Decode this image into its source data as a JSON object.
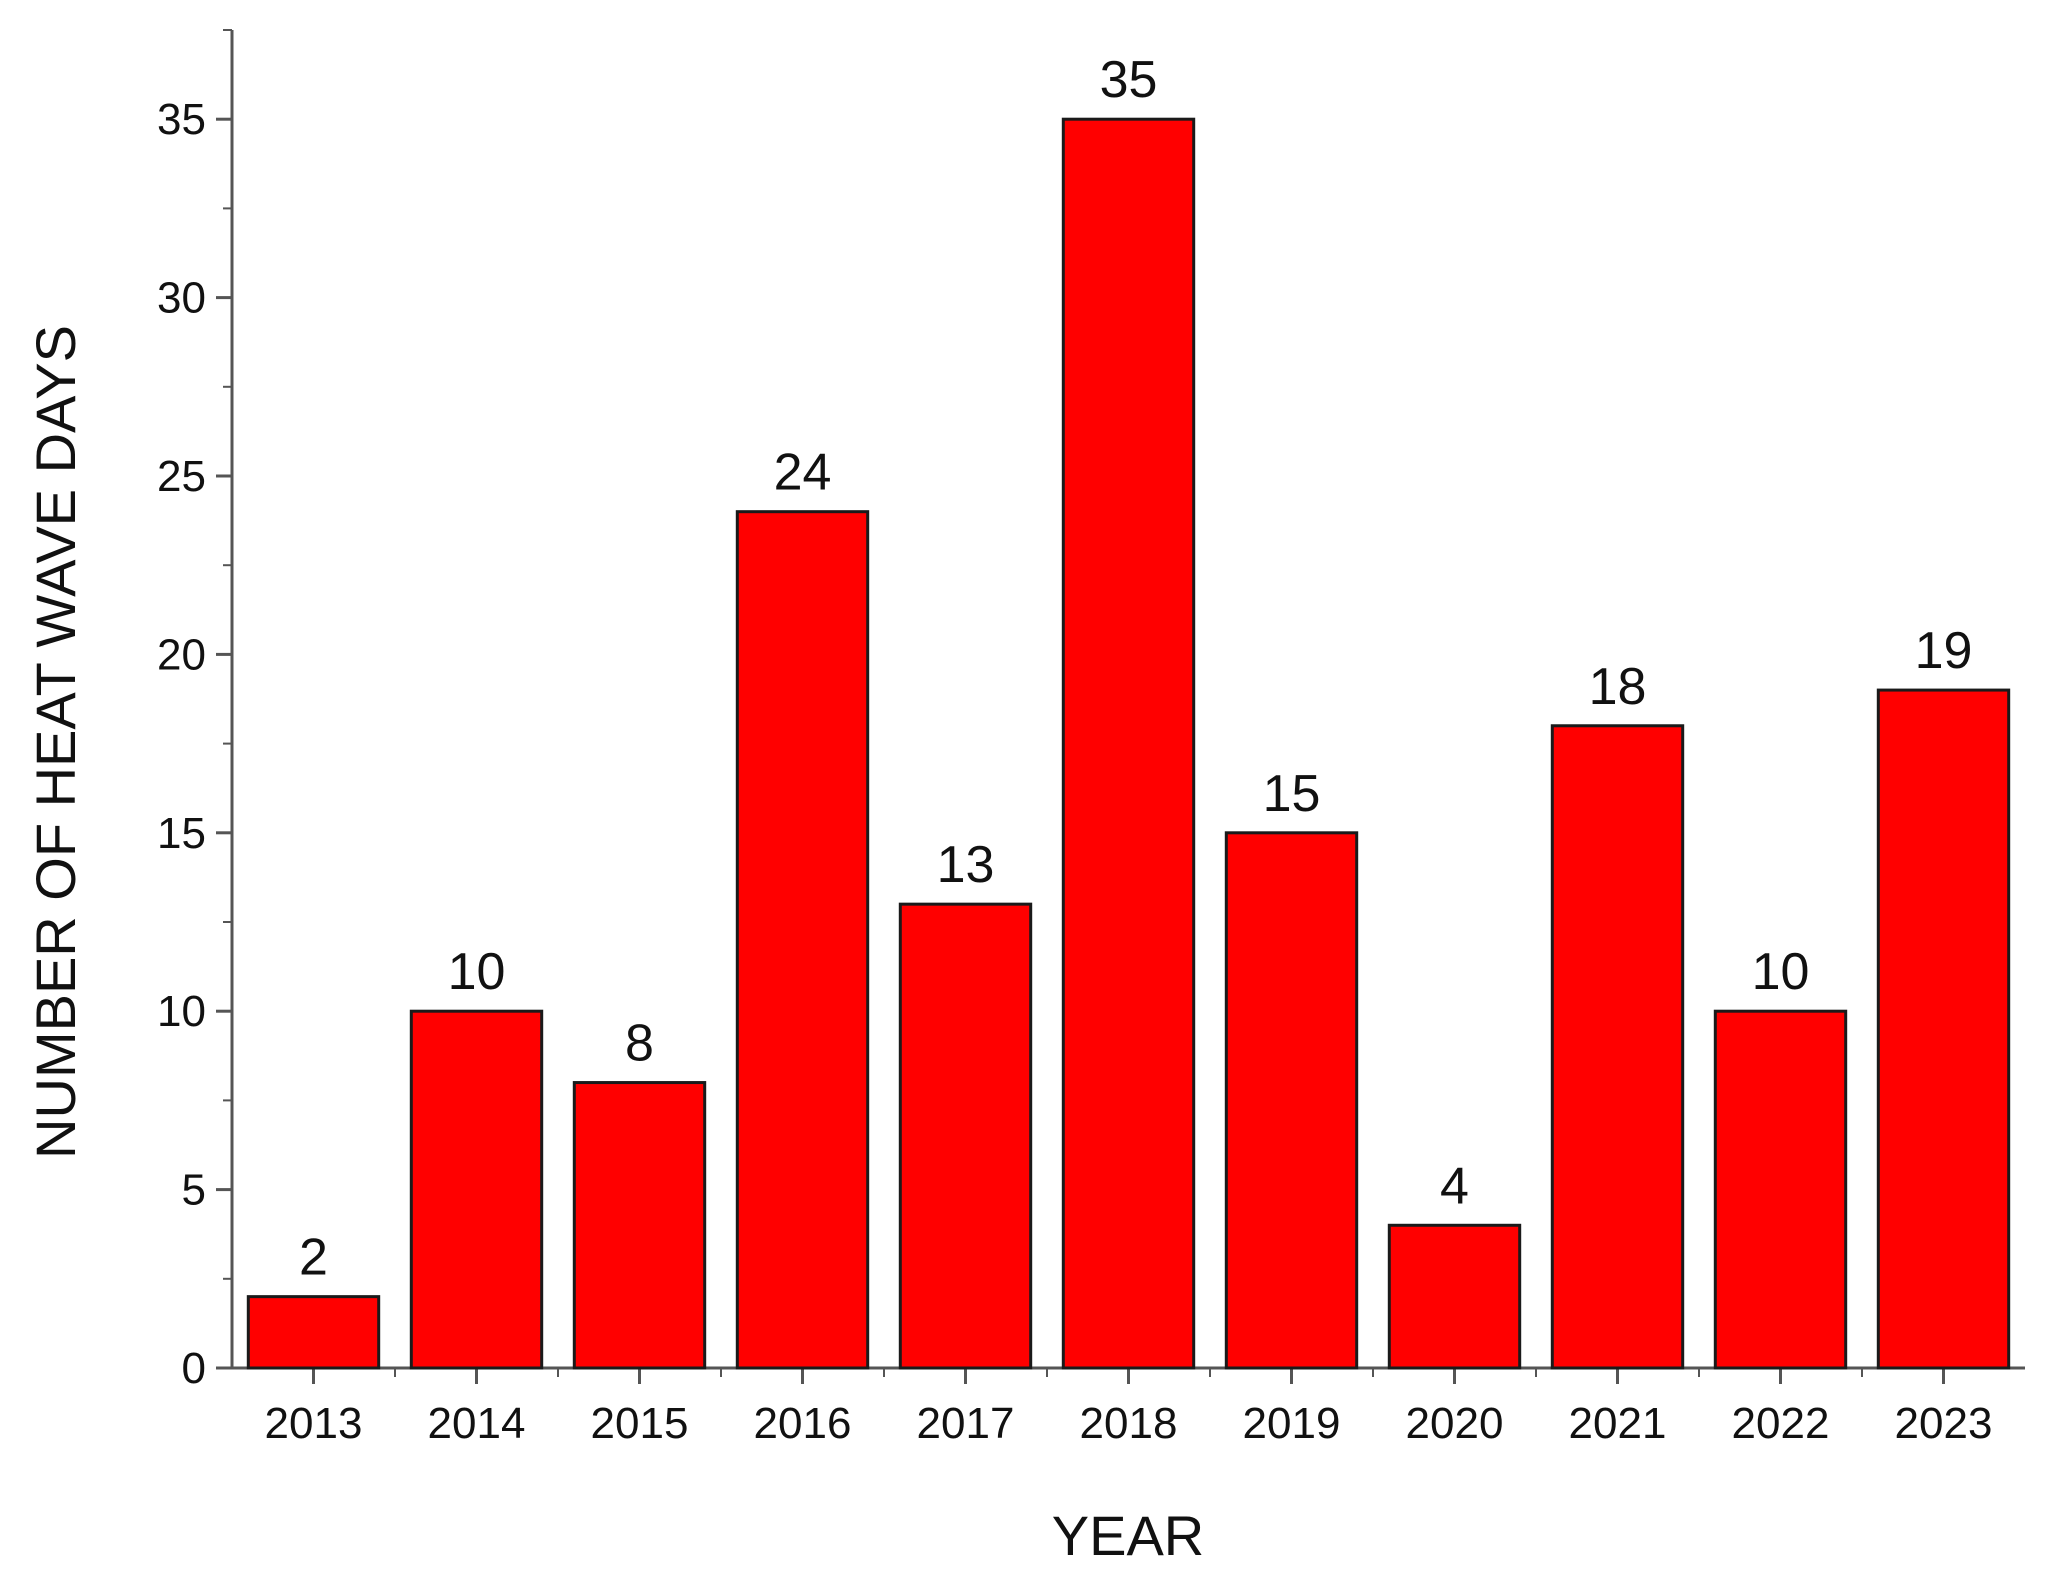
{
  "chart_data": {
    "type": "bar",
    "title": "",
    "xlabel": "YEAR",
    "ylabel": "NUMBER OF HEAT WAVE DAYS",
    "categories": [
      "2013",
      "2014",
      "2015",
      "2016",
      "2017",
      "2018",
      "2019",
      "2020",
      "2021",
      "2022",
      "2023"
    ],
    "values": [
      2,
      10,
      8,
      24,
      13,
      35,
      15,
      4,
      18,
      10,
      19
    ],
    "data_labels": [
      "2",
      "10",
      "8",
      "24",
      "13",
      "35",
      "15",
      "4",
      "18",
      "10",
      "19"
    ],
    "ylim": [
      0,
      37.5
    ],
    "yticks": [
      0,
      5,
      10,
      15,
      20,
      25,
      30,
      35
    ],
    "ytick_labels": [
      "0",
      "5",
      "10",
      "15",
      "20",
      "25",
      "30",
      "35"
    ],
    "grid": false,
    "legend": "none",
    "colors": {
      "bar_fill": "#ff0000",
      "bar_stroke": "#1a1a1a",
      "axis": "#555555",
      "text": "#111111"
    }
  }
}
